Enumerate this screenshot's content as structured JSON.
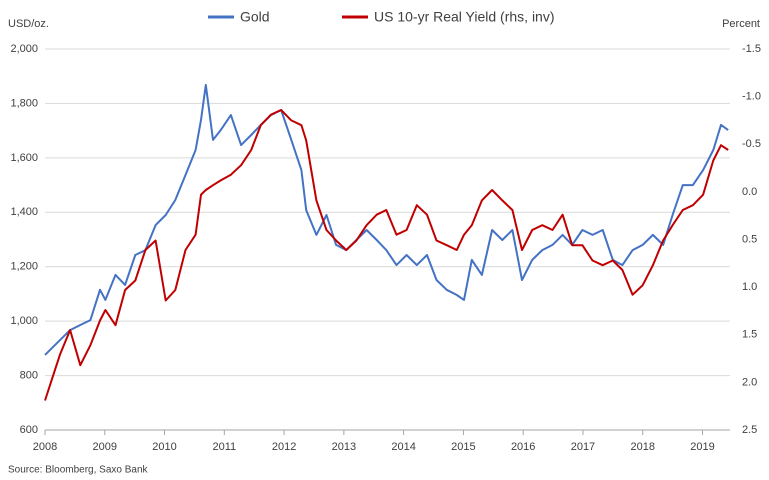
{
  "chart_data": {
    "type": "line",
    "legend": [
      "Gold",
      "US 10-yr Real Yield (rhs, inv)"
    ],
    "y_label": "USD/oz.",
    "y2_label": "Percent",
    "source": "Source: Bloomberg, Saxo Bank",
    "x": [
      2008.0,
      2008.25,
      2008.42,
      2008.59,
      2008.76,
      2008.92,
      2009.01,
      2009.18,
      2009.34,
      2009.51,
      2009.68,
      2009.85,
      2010.02,
      2010.18,
      2010.35,
      2010.52,
      2010.61,
      2010.69,
      2010.81,
      2010.94,
      2011.11,
      2011.28,
      2011.45,
      2011.61,
      2011.78,
      2011.95,
      2012.12,
      2012.29,
      2012.37,
      2012.54,
      2012.71,
      2012.87,
      2013.04,
      2013.21,
      2013.38,
      2013.55,
      2013.71,
      2013.88,
      2014.05,
      2014.22,
      2014.39,
      2014.55,
      2014.72,
      2014.89,
      2015.01,
      2015.14,
      2015.31,
      2015.48,
      2015.65,
      2015.82,
      2015.98,
      2016.15,
      2016.32,
      2016.49,
      2016.66,
      2016.82,
      2016.99,
      2017.16,
      2017.33,
      2017.5,
      2017.66,
      2017.83,
      2018.0,
      2018.17,
      2018.34,
      2018.5,
      2018.67,
      2018.84,
      2019.01,
      2019.18,
      2019.31,
      2019.43
    ],
    "series": [
      {
        "name": "Gold",
        "color": "#4472c4",
        "axis": "y",
        "values": [
          876,
          930,
          967,
          986,
          1004,
          1115,
          1078,
          1170,
          1133,
          1243,
          1261,
          1353,
          1390,
          1445,
          1537,
          1629,
          1739,
          1868,
          1666,
          1702,
          1757,
          1647,
          1684,
          1721,
          1757,
          1776,
          1666,
          1555,
          1408,
          1317,
          1390,
          1280,
          1261,
          1298,
          1335,
          1298,
          1261,
          1206,
          1243,
          1206,
          1243,
          1151,
          1115,
          1096,
          1078,
          1225,
          1170,
          1335,
          1298,
          1335,
          1151,
          1225,
          1261,
          1280,
          1317,
          1280,
          1335,
          1317,
          1335,
          1225,
          1206,
          1261,
          1280,
          1317,
          1280,
          1390,
          1500,
          1500,
          1555,
          1629,
          1721,
          1702
        ]
      },
      {
        "name": "US 10-yr Real Yield (rhs, inv)",
        "color": "#c00000",
        "axis": "y2",
        "values": [
          2.19,
          1.71,
          1.45,
          1.82,
          1.61,
          1.35,
          1.24,
          1.4,
          1.03,
          0.93,
          0.61,
          0.51,
          1.14,
          1.03,
          0.61,
          0.45,
          0.03,
          -0.02,
          -0.07,
          -0.12,
          -0.18,
          -0.28,
          -0.44,
          -0.7,
          -0.81,
          -0.86,
          -0.75,
          -0.7,
          -0.54,
          0.09,
          0.4,
          0.51,
          0.61,
          0.51,
          0.35,
          0.24,
          0.19,
          0.45,
          0.4,
          0.14,
          0.24,
          0.51,
          0.56,
          0.61,
          0.45,
          0.35,
          0.09,
          -0.02,
          0.09,
          0.19,
          0.61,
          0.4,
          0.35,
          0.4,
          0.24,
          0.56,
          0.56,
          0.72,
          0.77,
          0.72,
          0.82,
          1.08,
          0.98,
          0.77,
          0.51,
          0.35,
          0.19,
          0.14,
          0.03,
          -0.33,
          -0.49,
          -0.44
        ]
      }
    ],
    "xlim": [
      2008,
      2019.46
    ],
    "xticks": [
      2008,
      2009,
      2010,
      2011,
      2012,
      2013,
      2014,
      2015,
      2016,
      2017,
      2018,
      2019
    ],
    "ylim": [
      600,
      2000
    ],
    "yticks": [
      600,
      800,
      {
        "value": 1000,
        "label": "1,000"
      },
      {
        "value": 1200,
        "label": "1,200"
      },
      {
        "value": 1400,
        "label": "1,400"
      },
      {
        "value": 1600,
        "label": "1,600"
      },
      {
        "value": 1800,
        "label": "1,800"
      },
      {
        "value": 2000,
        "label": "2,000"
      }
    ],
    "y2lim": [
      2.5,
      -1.5
    ],
    "y2ticks": [
      2.5,
      {
        "value": 2,
        "label": "2.0"
      },
      1.5,
      {
        "value": 1,
        "label": "1.0"
      },
      0.5,
      {
        "value": 0,
        "label": "0.0"
      },
      -0.5,
      {
        "value": -1,
        "label": "-1.0"
      },
      -1.5
    ],
    "grid": true
  }
}
